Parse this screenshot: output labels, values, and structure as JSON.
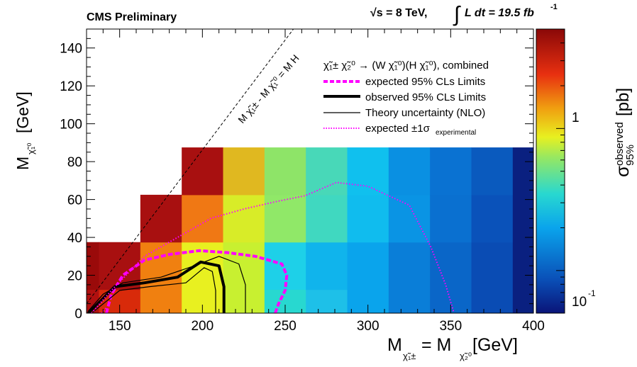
{
  "header": {
    "left": "CMS Preliminary",
    "right_energy": "√s = 8 TeV,",
    "right_lumi_prefix": "∫",
    "right_lumi": "L dt = 19.5 fb",
    "right_lumi_exp": "-1"
  },
  "chart_data": {
    "type": "heatmap",
    "xlabel": "M",
    "xlabel_sub1": "χ̃₁±",
    "xlabel_mid": " = M",
    "xlabel_sub2": "χ̃₂⁰",
    "xlabel_unit": " [GeV]",
    "ylabel": "M",
    "ylabel_sub": "χ̃₁⁰",
    "ylabel_unit": " [GeV]",
    "zlabel": "σ",
    "zlabel_sup": "observed",
    "zlabel_sub": "95%",
    "zlabel_unit": " [pb]",
    "xlim": [
      130,
      400
    ],
    "ylim": [
      0,
      150
    ],
    "zlim_log10": [
      -1.3,
      0.7
    ],
    "x_ticks": [
      150,
      200,
      250,
      300,
      350,
      400
    ],
    "y_ticks": [
      0,
      20,
      40,
      60,
      80,
      100,
      120,
      140
    ],
    "z_tick_labels": [
      "1",
      "10",
      "-1"
    ],
    "diagonal_label": "M χ̃₁± - M χ̃₁⁰ = M H",
    "cells": [
      {
        "x": [
          125,
          137.5
        ],
        "y": [
          0,
          12.5
        ],
        "color": "#b01010"
      },
      {
        "x": [
          125,
          137.5
        ],
        "y": [
          12.5,
          37.5
        ],
        "color": "#9a0a0a"
      },
      {
        "x": [
          137.5,
          162.5
        ],
        "y": [
          0,
          12.5
        ],
        "color": "#d82a0a"
      },
      {
        "x": [
          137.5,
          162.5
        ],
        "y": [
          12.5,
          37.5
        ],
        "color": "#a81010"
      },
      {
        "x": [
          162.5,
          187.5
        ],
        "y": [
          0,
          37.5
        ],
        "color": "#f08010"
      },
      {
        "x": [
          162.5,
          187.5
        ],
        "y": [
          37.5,
          62.5
        ],
        "color": "#a81010"
      },
      {
        "x": [
          187.5,
          212.5
        ],
        "y": [
          0,
          37.5
        ],
        "color": "#e8f020"
      },
      {
        "x": [
          187.5,
          212.5
        ],
        "y": [
          37.5,
          62.5
        ],
        "color": "#f07814"
      },
      {
        "x": [
          187.5,
          212.5
        ],
        "y": [
          62.5,
          87.5
        ],
        "color": "#a81010"
      },
      {
        "x": [
          212.5,
          237.5
        ],
        "y": [
          0,
          37.5
        ],
        "color": "#c8f030"
      },
      {
        "x": [
          212.5,
          237.5
        ],
        "y": [
          37.5,
          62.5
        ],
        "color": "#d8ec28"
      },
      {
        "x": [
          212.5,
          237.5
        ],
        "y": [
          62.5,
          87.5
        ],
        "color": "#e0b820"
      },
      {
        "x": [
          237.5,
          262.5
        ],
        "y": [
          0,
          12.5
        ],
        "color": "#28d8d0"
      },
      {
        "x": [
          237.5,
          262.5
        ],
        "y": [
          12.5,
          37.5
        ],
        "color": "#1ed0e8"
      },
      {
        "x": [
          237.5,
          262.5
        ],
        "y": [
          37.5,
          62.5
        ],
        "color": "#90e868"
      },
      {
        "x": [
          237.5,
          262.5
        ],
        "y": [
          62.5,
          87.5
        ],
        "color": "#8ee468"
      },
      {
        "x": [
          262.5,
          287.5
        ],
        "y": [
          0,
          12.5
        ],
        "color": "#1ec0e8"
      },
      {
        "x": [
          262.5,
          287.5
        ],
        "y": [
          12.5,
          37.5
        ],
        "color": "#10b4ec"
      },
      {
        "x": [
          262.5,
          287.5
        ],
        "y": [
          37.5,
          62.5
        ],
        "color": "#40d8c0"
      },
      {
        "x": [
          262.5,
          287.5
        ],
        "y": [
          62.5,
          87.5
        ],
        "color": "#48d8b8"
      },
      {
        "x": [
          287.5,
          312.5
        ],
        "y": [
          0,
          37.5
        ],
        "color": "#0aa4ec"
      },
      {
        "x": [
          287.5,
          312.5
        ],
        "y": [
          37.5,
          62.5
        ],
        "color": "#10bcee"
      },
      {
        "x": [
          287.5,
          312.5
        ],
        "y": [
          62.5,
          87.5
        ],
        "color": "#10c0ee"
      },
      {
        "x": [
          312.5,
          337.5
        ],
        "y": [
          0,
          37.5
        ],
        "color": "#0a7ed8"
      },
      {
        "x": [
          312.5,
          337.5
        ],
        "y": [
          37.5,
          62.5
        ],
        "color": "#0a94e4"
      },
      {
        "x": [
          312.5,
          337.5
        ],
        "y": [
          62.5,
          87.5
        ],
        "color": "#0a90e2"
      },
      {
        "x": [
          337.5,
          362.5
        ],
        "y": [
          0,
          37.5
        ],
        "color": "#0a66c8"
      },
      {
        "x": [
          337.5,
          362.5
        ],
        "y": [
          37.5,
          62.5
        ],
        "color": "#0a70d0"
      },
      {
        "x": [
          337.5,
          362.5
        ],
        "y": [
          62.5,
          87.5
        ],
        "color": "#0a72d2"
      },
      {
        "x": [
          362.5,
          387.5
        ],
        "y": [
          0,
          37.5
        ],
        "color": "#0a4cb4"
      },
      {
        "x": [
          362.5,
          387.5
        ],
        "y": [
          37.5,
          62.5
        ],
        "color": "#0a52ba"
      },
      {
        "x": [
          362.5,
          387.5
        ],
        "y": [
          62.5,
          87.5
        ],
        "color": "#0a5abe"
      },
      {
        "x": [
          387.5,
          400
        ],
        "y": [
          0,
          87.5
        ],
        "color": "#0a2080"
      }
    ],
    "series": [
      {
        "name": "expected 95% CLs Limits",
        "style": "expected",
        "color": "#ff00ff",
        "points": [
          [
            142,
            0
          ],
          [
            145,
            10
          ],
          [
            152,
            20
          ],
          [
            165,
            28
          ],
          [
            180,
            31
          ],
          [
            198,
            33
          ],
          [
            215,
            32
          ],
          [
            232,
            30
          ],
          [
            248,
            26
          ],
          [
            251,
            20
          ],
          [
            250,
            12
          ],
          [
            246,
            5
          ],
          [
            244,
            0
          ]
        ]
      },
      {
        "name": "observed 95% CLs Limits",
        "style": "observed",
        "color": "#000000",
        "points": [
          [
            131,
            0
          ],
          [
            138,
            6
          ],
          [
            147,
            14
          ],
          [
            165,
            16
          ],
          [
            185,
            19
          ],
          [
            199,
            27
          ],
          [
            210,
            25
          ],
          [
            213,
            14
          ],
          [
            213,
            0
          ]
        ]
      },
      {
        "name": "Theory uncertainty (NLO)",
        "style": "theory",
        "color": "#000000",
        "points": [
          [
            131,
            1
          ],
          [
            140,
            10
          ],
          [
            152,
            16
          ],
          [
            175,
            19
          ],
          [
            195,
            25
          ],
          [
            210,
            30
          ],
          [
            222,
            26
          ],
          [
            226,
            15
          ],
          [
            226,
            0
          ]
        ]
      },
      {
        "name": "",
        "style": "theory",
        "color": "#000000",
        "points": [
          [
            133,
            0
          ],
          [
            143,
            7
          ],
          [
            150,
            12
          ],
          [
            168,
            14
          ],
          [
            190,
            16
          ],
          [
            201,
            24
          ],
          [
            206,
            22
          ],
          [
            208,
            12
          ],
          [
            208,
            0
          ]
        ]
      },
      {
        "name": "expected ±1σ experimental",
        "style": "sigma",
        "color": "#ff00ff",
        "points": [
          [
            133,
            0
          ],
          [
            145,
            12
          ],
          [
            165,
            30
          ],
          [
            185,
            40
          ],
          [
            205,
            50
          ],
          [
            225,
            55
          ],
          [
            245,
            59
          ],
          [
            262,
            62
          ],
          [
            281,
            69
          ],
          [
            300,
            67
          ],
          [
            325,
            57
          ],
          [
            338,
            35
          ],
          [
            347,
            15
          ],
          [
            352,
            0
          ]
        ]
      },
      {
        "name": "",
        "style": "sigma",
        "color": "#ff00ff",
        "points": [
          [
            139,
            0
          ],
          [
            142,
            3
          ]
        ]
      }
    ],
    "diagonal": {
      "points": [
        [
          130,
          5
        ],
        [
          255,
          150
        ]
      ]
    }
  },
  "legend": {
    "title": "χ̃₁± χ̃₂⁰ → (W χ̃₁⁰)(H χ̃₁⁰), combined",
    "title_main": "χ̃",
    "title_rest": "→ (Wχ̃",
    "entries": [
      {
        "label": "expected 95% CLs Limits",
        "style": "expected"
      },
      {
        "label": "observed 95% CLs Limits",
        "style": "observed"
      },
      {
        "label": "Theory uncertainty (NLO)",
        "style": "theory"
      },
      {
        "label": "expected ±1σ",
        "label_sub": "experimental",
        "style": "sigma"
      }
    ]
  }
}
